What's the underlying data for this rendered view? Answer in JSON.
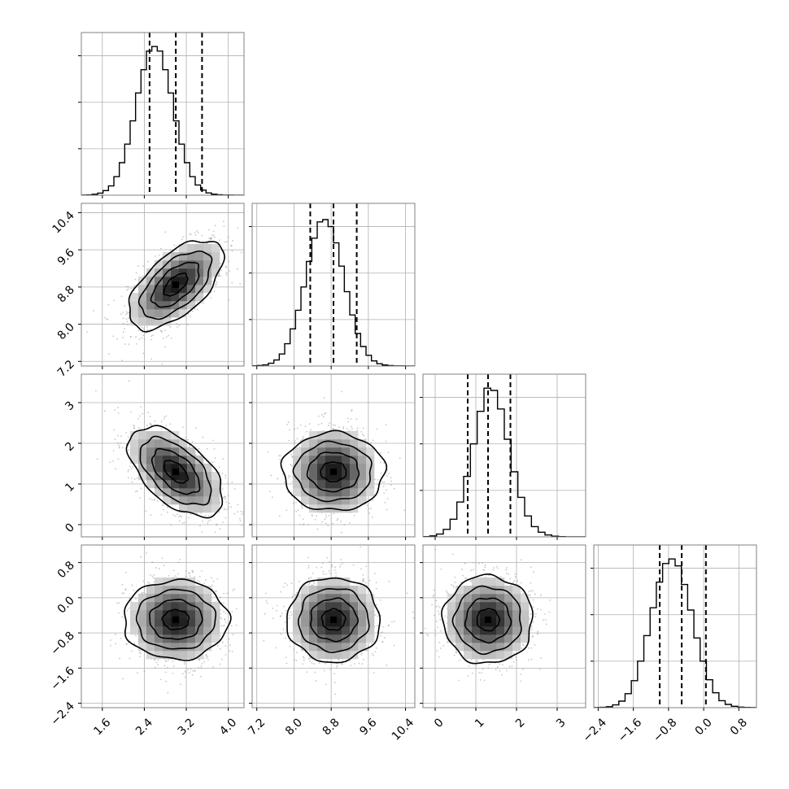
{
  "colors": {
    "frame": "#808080",
    "grid": "#b0b0b0",
    "hist_line": "#000000",
    "quantile_line": "#000000",
    "contour": "#000000",
    "density_dark": "#000000",
    "scatter_point": "#999999"
  },
  "params": [
    {
      "index": 0,
      "range": [
        1.2,
        4.3
      ],
      "ticks": [
        "1.6",
        "2.4",
        "3.2",
        "4.0"
      ],
      "tick_values": [
        1.6,
        2.4,
        3.2,
        4.0
      ]
    },
    {
      "index": 1,
      "range": [
        7.1,
        10.6
      ],
      "ticks": [
        "7.2",
        "8.0",
        "8.8",
        "9.6",
        "10.4"
      ],
      "tick_values": [
        7.2,
        8.0,
        8.8,
        9.6,
        10.4
      ]
    },
    {
      "index": 2,
      "range": [
        -0.3,
        3.7
      ],
      "ticks": [
        "0",
        "1",
        "2",
        "3"
      ],
      "tick_values": [
        0,
        1,
        2,
        3
      ]
    },
    {
      "index": 3,
      "range": [
        -2.5,
        1.2
      ],
      "ticks": [
        "−2.4",
        "−1.6",
        "−0.8",
        "0.0",
        "0.8"
      ],
      "tick_values": [
        -2.4,
        -1.6,
        -0.8,
        0.0,
        0.8
      ]
    }
  ],
  "chart_data": {
    "type": "corner",
    "grid": true,
    "marginal_histograms": [
      {
        "param": 0,
        "range": [
          1.2,
          4.3
        ],
        "quantiles": [
          2.5,
          3.0,
          3.5
        ],
        "ymax": 3500,
        "counts": [
          4,
          8,
          20,
          45,
          100,
          200,
          400,
          700,
          1100,
          1600,
          2200,
          2700,
          3100,
          3200,
          3100,
          2700,
          2200,
          1600,
          1100,
          700,
          400,
          220,
          110,
          50,
          22,
          10,
          4,
          2,
          0,
          0
        ]
      },
      {
        "param": 1,
        "range": [
          7.1,
          10.6
        ],
        "quantiles": [
          8.35,
          8.85,
          9.35
        ],
        "ymax": 3500,
        "counts": [
          5,
          12,
          25,
          60,
          130,
          260,
          480,
          800,
          1200,
          1700,
          2250,
          2750,
          3100,
          3150,
          3000,
          2650,
          2150,
          1600,
          1100,
          700,
          420,
          230,
          110,
          50,
          22,
          10,
          4,
          2,
          0,
          0
        ]
      },
      {
        "param": 2,
        "range": [
          -0.3,
          3.7
        ],
        "quantiles": [
          0.8,
          1.3,
          1.85
        ],
        "ymax": 3500,
        "counts": [
          5,
          20,
          60,
          160,
          380,
          750,
          1300,
          2000,
          2700,
          3200,
          3150,
          2750,
          2100,
          1400,
          850,
          450,
          220,
          100,
          40,
          15,
          5,
          0,
          0,
          0
        ]
      },
      {
        "param": 3,
        "range": [
          -2.5,
          1.2
        ],
        "quantiles": [
          -1.0,
          -0.5,
          0.05
        ],
        "ymax": 3500,
        "counts": [
          2,
          8,
          20,
          60,
          140,
          300,
          580,
          1000,
          1550,
          2150,
          2700,
          3100,
          3200,
          3050,
          2650,
          2100,
          1500,
          1000,
          600,
          320,
          150,
          70,
          30,
          12,
          5,
          2
        ]
      }
    ],
    "joint_distributions": [
      {
        "x_param": 0,
        "y_param": 1,
        "center": [
          3.0,
          8.85
        ],
        "sigma": [
          0.45,
          0.48
        ],
        "correlation": 0.6
      },
      {
        "x_param": 0,
        "y_param": 2,
        "center": [
          3.0,
          1.3
        ],
        "sigma": [
          0.45,
          0.55
        ],
        "correlation": -0.55
      },
      {
        "x_param": 1,
        "y_param": 2,
        "center": [
          8.85,
          1.3
        ],
        "sigma": [
          0.48,
          0.55
        ],
        "correlation": 0.0
      },
      {
        "x_param": 0,
        "y_param": 3,
        "center": [
          3.0,
          -0.5
        ],
        "sigma": [
          0.45,
          0.5
        ],
        "correlation": 0.0
      },
      {
        "x_param": 1,
        "y_param": 3,
        "center": [
          8.85,
          -0.5
        ],
        "sigma": [
          0.48,
          0.5
        ],
        "correlation": 0.0
      },
      {
        "x_param": 2,
        "y_param": 3,
        "center": [
          1.3,
          -0.5
        ],
        "sigma": [
          0.55,
          0.5
        ],
        "correlation": 0.0
      }
    ]
  }
}
